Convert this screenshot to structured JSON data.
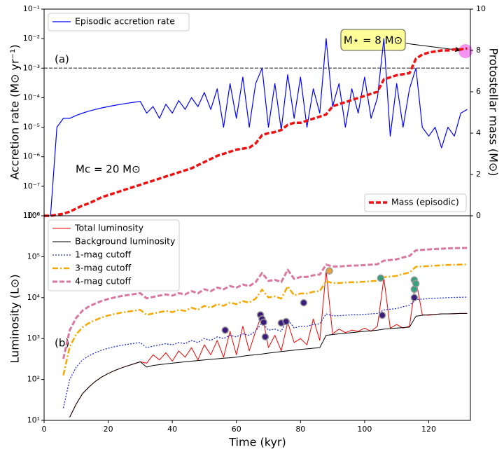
{
  "chart_data": [
    {
      "type": "line",
      "log_scale": true,
      "ylabel": "Accretion rate (M⊙ yr⁻¹)",
      "y2label": "Protostellar mass (M⊙)",
      "panel_label": "(a)",
      "annotation": "Mc = 20 M⊙",
      "callout": "M⋆ = 8 M⊙",
      "xlim": [
        0,
        133
      ],
      "ylim": [
        1e-08,
        0.1
      ],
      "y2lim": [
        0,
        10
      ],
      "yticks": [
        {
          "value": 1e-08,
          "label": "10⁻⁸"
        },
        {
          "value": 1e-07,
          "label": "10⁻⁷"
        },
        {
          "value": 1e-06,
          "label": "10⁻⁶"
        },
        {
          "value": 1e-05,
          "label": "10⁻⁵"
        },
        {
          "value": 0.0001,
          "label": "10⁻⁴"
        },
        {
          "value": 0.001,
          "label": "10⁻³"
        },
        {
          "value": 0.01,
          "label": "10⁻²"
        },
        {
          "value": 0.1,
          "label": "10⁻¹"
        }
      ],
      "y2ticks": [
        0,
        2,
        4,
        6,
        8,
        10
      ],
      "reference_lines": [
        0.001
      ],
      "x": [
        0,
        2,
        4,
        6,
        8,
        10,
        12,
        14,
        16,
        18,
        20,
        22,
        24,
        26,
        28,
        30,
        32,
        34,
        36,
        38,
        40,
        42,
        44,
        46,
        48,
        50,
        52,
        54,
        56,
        58,
        60,
        62,
        64,
        66,
        68,
        70,
        72,
        74,
        76,
        78,
        80,
        82,
        84,
        86,
        88,
        90,
        92,
        94,
        96,
        98,
        100,
        102,
        104,
        106,
        108,
        110,
        112,
        114,
        116,
        118,
        120,
        122,
        124,
        126,
        128,
        130,
        132
      ],
      "series": [
        {
          "name": "Episodic accretion rate",
          "color": "#0000ff",
          "style": "solid",
          "width": 1.2,
          "legend_loc": "upper left",
          "values": [
            null,
            1e-08,
            1e-05,
            2e-05,
            2e-05,
            2.5e-05,
            3e-05,
            3.5e-05,
            4e-05,
            4.5e-05,
            5e-05,
            5.5e-05,
            6e-05,
            6.5e-05,
            7e-05,
            7.5e-05,
            3e-05,
            5e-05,
            2e-05,
            6e-05,
            3e-05,
            8e-05,
            4e-05,
            0.0001,
            5e-05,
            0.00015,
            4e-05,
            0.0002,
            1e-05,
            0.0003,
            2e-05,
            0.0005,
            1e-05,
            0.0003,
            0.001,
            1e-05,
            0.0003,
            8e-06,
            0.0006,
            2e-05,
            0.0005,
            1e-05,
            0.0002,
            3e-05,
            0.01,
            5e-05,
            0.0003,
            1e-05,
            0.0002,
            3e-05,
            0.0005,
            2e-05,
            0.0001,
            0.01,
            5e-06,
            0.0003,
            1e-05,
            0.0002,
            0.001,
            1e-05,
            5e-06,
            1e-05,
            2e-06,
            1e-05,
            5e-06,
            3e-05,
            4e-05
          ]
        },
        {
          "name": "Mass (episodic)",
          "color": "#ee1111",
          "style": "dashed",
          "width": 3.5,
          "axis": "y2",
          "legend_loc": "lower right",
          "values": [
            0,
            0,
            0.05,
            0.1,
            0.2,
            0.35,
            0.5,
            0.6,
            0.75,
            0.9,
            1.0,
            1.1,
            1.2,
            1.3,
            1.4,
            1.5,
            1.6,
            1.7,
            1.8,
            1.9,
            2.0,
            2.1,
            2.2,
            2.3,
            2.45,
            2.6,
            2.75,
            2.9,
            3.0,
            3.1,
            3.2,
            3.25,
            3.3,
            3.5,
            3.9,
            4.0,
            4.05,
            4.15,
            4.4,
            4.5,
            4.5,
            4.6,
            4.7,
            4.8,
            4.9,
            5.3,
            5.4,
            5.5,
            5.6,
            5.7,
            5.8,
            5.9,
            6.0,
            6.6,
            6.7,
            6.8,
            6.85,
            6.9,
            7.6,
            7.8,
            7.9,
            7.95,
            8.0,
            8.0,
            8.05,
            8.05,
            8.1
          ]
        }
      ]
    },
    {
      "type": "line",
      "log_scale": true,
      "ylabel": "Luminosity (L⊙)",
      "xlabel": "Time (kyr)",
      "panel_label": "(b)",
      "legend_loc": "upper left",
      "xlim": [
        0,
        133
      ],
      "ylim": [
        10,
        1000000
      ],
      "xticks": [
        0,
        20,
        40,
        60,
        80,
        100,
        120
      ],
      "yticks": [
        {
          "value": 10,
          "label": "10¹"
        },
        {
          "value": 100,
          "label": "10²"
        },
        {
          "value": 1000,
          "label": "10³"
        },
        {
          "value": 10000,
          "label": "10⁴"
        },
        {
          "value": 100000,
          "label": "10⁵"
        },
        {
          "value": 1000000,
          "label": "10⁶"
        }
      ],
      "x": [
        0,
        2,
        4,
        6,
        8,
        10,
        12,
        14,
        16,
        18,
        20,
        22,
        24,
        26,
        28,
        30,
        32,
        34,
        36,
        38,
        40,
        42,
        44,
        46,
        48,
        50,
        52,
        54,
        56,
        58,
        60,
        62,
        64,
        66,
        68,
        70,
        72,
        74,
        76,
        78,
        80,
        82,
        84,
        86,
        88,
        90,
        92,
        94,
        96,
        98,
        100,
        102,
        104,
        106,
        108,
        110,
        112,
        114,
        116,
        118,
        120,
        122,
        124,
        126,
        128,
        130,
        132
      ],
      "series": [
        {
          "name": "Total luminosity",
          "color": "#ee0000",
          "style": "solid",
          "width": 1,
          "values": [
            null,
            null,
            null,
            null,
            12,
            25,
            45,
            65,
            90,
            115,
            140,
            165,
            190,
            215,
            240,
            270,
            250,
            400,
            300,
            450,
            280,
            500,
            350,
            600,
            300,
            700,
            400,
            900,
            350,
            1500,
            400,
            2000,
            500,
            1500,
            4000,
            600,
            1200,
            500,
            2500,
            800,
            1000,
            700,
            3000,
            900,
            45000,
            1300,
            1700,
            1400,
            1600,
            1500,
            1800,
            1500,
            2000,
            30000,
            1800,
            2200,
            1800,
            2000,
            27000,
            3800,
            3700,
            3900,
            4000,
            4000,
            4050,
            4100,
            4100
          ]
        },
        {
          "name": "Background luminosity",
          "color": "#000000",
          "style": "solid",
          "width": 1,
          "values": [
            null,
            null,
            null,
            null,
            12,
            25,
            45,
            65,
            90,
            115,
            140,
            165,
            190,
            215,
            240,
            270,
            200,
            220,
            230,
            240,
            250,
            260,
            270,
            280,
            290,
            300,
            310,
            320,
            330,
            340,
            350,
            370,
            390,
            400,
            420,
            440,
            460,
            480,
            500,
            520,
            540,
            560,
            580,
            600,
            1200,
            1250,
            1300,
            1350,
            1400,
            1450,
            1500,
            1550,
            1600,
            1700,
            1750,
            1800,
            1850,
            1900,
            3500,
            3700,
            3800,
            3900,
            4000,
            4000,
            4050,
            4100,
            4100
          ]
        },
        {
          "name": "1-mag cutoff",
          "color": "#1f2fd8",
          "style": "dotted",
          "width": 1.3,
          "values": [
            null,
            null,
            null,
            20,
            100,
            200,
            300,
            380,
            450,
            520,
            580,
            630,
            680,
            720,
            760,
            800,
            600,
            650,
            700,
            750,
            700,
            800,
            750,
            900,
            800,
            1000,
            900,
            1100,
            1000,
            1200,
            1100,
            1300,
            1200,
            1500,
            2500,
            1600,
            1700,
            1500,
            3000,
            1800,
            2000,
            2000,
            2200,
            2300,
            4000,
            3600,
            3600,
            3700,
            3800,
            3800,
            3900,
            4000,
            4100,
            5000,
            5200,
            5400,
            6000,
            6500,
            9000,
            9200,
            9400,
            9600,
            9800,
            10000,
            10100,
            10200,
            10300
          ]
        },
        {
          "name": "3-mag cutoff",
          "color": "#f5a800",
          "style": "dashdot",
          "width": 2.5,
          "values": [
            null,
            null,
            null,
            126,
            630,
            1260,
            1890,
            2394,
            2835,
            3276,
            3654,
            3969,
            4284,
            4536,
            4788,
            5040,
            3780,
            4095,
            4410,
            4725,
            4410,
            5040,
            4725,
            5670,
            5040,
            6300,
            5670,
            6930,
            6300,
            7560,
            6930,
            8190,
            7560,
            9450,
            15750,
            10080,
            10710,
            9450,
            18900,
            11340,
            12600,
            12600,
            13860,
            14490,
            25200,
            22680,
            22680,
            23310,
            23940,
            23940,
            24570,
            25200,
            25830,
            31500,
            32760,
            34020,
            37800,
            40950,
            56700,
            57960,
            59220,
            60480,
            61740,
            63000,
            63630,
            64260,
            64890
          ]
        },
        {
          "name": "4-mag cutoff",
          "color": "#d9779f",
          "style": "dashed",
          "width": 3,
          "values": [
            null,
            null,
            null,
            320,
            1600,
            3200,
            4800,
            6080,
            7200,
            8320,
            9280,
            10080,
            10880,
            11520,
            12160,
            12800,
            9600,
            10400,
            11200,
            12000,
            11200,
            12800,
            12000,
            14400,
            12800,
            16000,
            14400,
            17600,
            16000,
            19200,
            17600,
            20800,
            19200,
            24000,
            40000,
            25600,
            27200,
            24000,
            48000,
            28800,
            32000,
            32000,
            35200,
            36800,
            64000,
            57600,
            57600,
            59200,
            60800,
            60800,
            62400,
            64000,
            65600,
            80000,
            83200,
            86400,
            96000,
            104000,
            144000,
            147200,
            150400,
            153600,
            156800,
            160000,
            161600,
            163200,
            164800
          ]
        }
      ],
      "markers": {
        "x": [
          56.5,
          67.5,
          68,
          68.5,
          69,
          74,
          75.5,
          81,
          89,
          105,
          105.5,
          115.5,
          115.5,
          115.5,
          116
        ],
        "values": [
          1600,
          3800,
          3000,
          2500,
          1100,
          2400,
          2600,
          7500,
          45000,
          30000,
          3700,
          27000,
          16000,
          10000,
          22000
        ],
        "colors": [
          "#3b1c7a",
          "#3b1c7a",
          "#3b1c7a",
          "#3b1c7a",
          "#3b1c7a",
          "#3b1c7a",
          "#3b1c7a",
          "#3b1c7a",
          "#e8a040",
          "#35a07e",
          "#3b1c7a",
          "#35a07e",
          "#35a07e",
          "#3b1c7a",
          "#35a07e"
        ]
      }
    }
  ]
}
